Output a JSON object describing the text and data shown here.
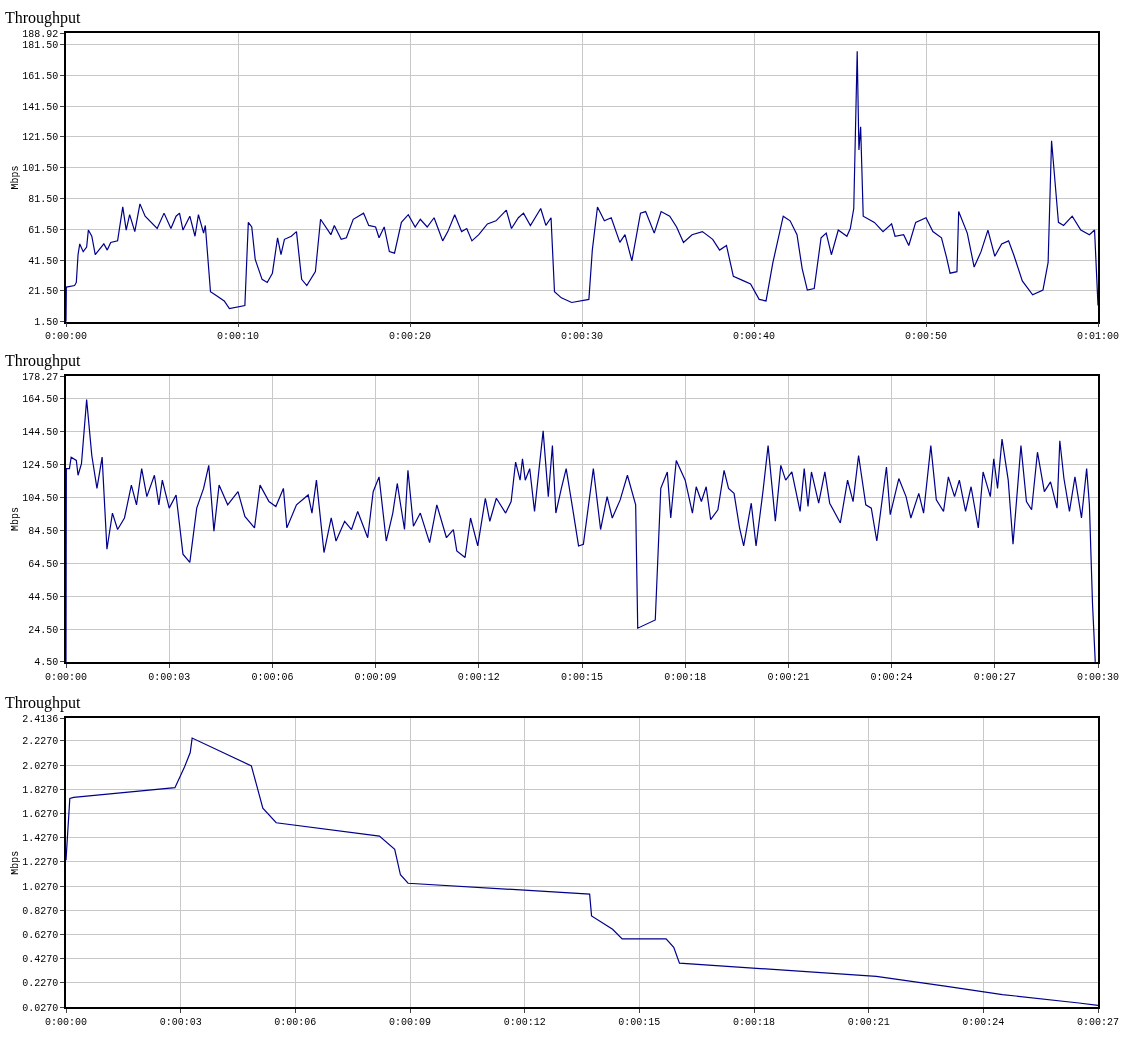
{
  "chart_data": [
    {
      "type": "line",
      "title": "Throughput",
      "ylabel": "Mbps",
      "color": "#00008b",
      "grid": true,
      "marker": "none",
      "line_style": "solid",
      "x": [
        0,
        0.02,
        0.5,
        0.6,
        0.7,
        0.8,
        1.0,
        1.2,
        1.3,
        1.5,
        1.7,
        2.2,
        2.4,
        2.6,
        3.0,
        3.3,
        3.5,
        3.7,
        4.0,
        4.3,
        4.6,
        5.3,
        5.7,
        6.1,
        6.4,
        6.6,
        6.8,
        7.2,
        7.5,
        7.7,
        8.0,
        8.1,
        8.4,
        8.8,
        9.2,
        9.5,
        10.4,
        10.6,
        10.8,
        11.0,
        11.4,
        11.7,
        12.0,
        12.3,
        12.5,
        12.7,
        13.1,
        13.4,
        13.7,
        14.0,
        14.5,
        14.8,
        15.4,
        15.6,
        16.0,
        16.3,
        16.7,
        17.3,
        17.6,
        18.0,
        18.2,
        18.5,
        18.8,
        19.1,
        19.5,
        19.9,
        20.3,
        20.6,
        21.0,
        21.4,
        21.6,
        21.9,
        22.2,
        22.6,
        23.0,
        23.3,
        23.6,
        24.0,
        24.5,
        25.0,
        25.6,
        25.9,
        26.3,
        26.6,
        27.0,
        27.6,
        27.9,
        28.2,
        28.4,
        28.8,
        29.4,
        30.4,
        30.6,
        30.9,
        31.3,
        31.7,
        32.2,
        32.5,
        32.9,
        33.4,
        33.7,
        34.2,
        34.6,
        35.1,
        35.5,
        35.9,
        36.4,
        37.0,
        37.6,
        38.0,
        38.4,
        38.8,
        39.4,
        39.8,
        40.3,
        40.7,
        41.1,
        41.7,
        42.1,
        42.5,
        42.8,
        43.1,
        43.5,
        43.9,
        44.2,
        44.5,
        44.9,
        45.4,
        45.6,
        45.8,
        46.0,
        46.1,
        46.2,
        46.35,
        47.0,
        47.5,
        48.0,
        48.2,
        48.7,
        49.0,
        49.4,
        50.0,
        50.4,
        50.9,
        51.2,
        51.4,
        51.8,
        51.9,
        52.4,
        52.8,
        53.2,
        53.6,
        54.0,
        54.4,
        54.8,
        55.1,
        55.6,
        56.2,
        56.8,
        57.1,
        57.3,
        57.7,
        58.0,
        58.5,
        59.0,
        59.5,
        59.8,
        60
      ],
      "values": [
        1.5,
        24,
        25,
        27,
        45,
        52,
        47,
        50,
        61,
        57,
        45,
        52,
        48,
        53,
        54,
        76,
        61,
        71,
        60,
        78,
        70,
        62,
        72,
        62,
        70,
        72,
        61,
        70,
        57,
        71,
        59,
        64,
        21,
        18,
        15,
        10,
        12,
        66,
        63,
        42,
        29,
        27,
        33,
        56,
        45,
        55,
        57,
        60,
        29,
        25,
        34,
        68,
        58,
        64,
        55,
        56,
        68,
        72,
        64,
        63,
        56,
        63,
        47,
        46,
        66,
        71,
        63,
        68,
        63,
        69,
        63,
        54,
        60,
        71,
        60,
        62,
        54,
        58,
        65,
        67,
        74,
        62,
        69,
        72,
        64,
        75,
        64,
        69,
        21,
        17,
        14,
        16,
        48,
        76,
        67,
        69,
        53,
        58,
        41,
        72,
        73,
        59,
        73,
        70,
        63,
        53,
        58,
        60,
        55,
        48,
        51,
        31,
        28,
        26,
        16,
        15,
        40,
        70,
        67,
        58,
        36,
        22,
        23,
        56,
        59,
        45,
        61,
        57,
        62,
        75,
        177,
        113,
        128,
        70,
        66,
        60,
        65,
        57,
        58,
        51,
        66,
        69,
        60,
        56,
        43,
        33,
        34,
        73,
        59,
        37,
        47,
        61,
        44,
        52,
        54,
        45,
        28,
        19,
        22,
        40,
        119,
        66,
        64,
        70,
        61,
        58,
        61,
        12
      ],
      "xlim": [
        0,
        60
      ],
      "xticks": [
        {
          "value": 0,
          "label": "0:00:00"
        },
        {
          "value": 10,
          "label": "0:00:10"
        },
        {
          "value": 20,
          "label": "0:00:20"
        },
        {
          "value": 30,
          "label": "0:00:30"
        },
        {
          "value": 40,
          "label": "0:00:40"
        },
        {
          "value": 50,
          "label": "0:00:50"
        },
        {
          "value": 60,
          "label": "0:01:00"
        }
      ],
      "ylim": [
        1.5,
        188.92
      ],
      "yticks": [
        {
          "value": 1.5,
          "label": "1.50"
        },
        {
          "value": 21.5,
          "label": "21.50"
        },
        {
          "value": 41.5,
          "label": "41.50"
        },
        {
          "value": 61.5,
          "label": "61.50"
        },
        {
          "value": 81.5,
          "label": "81.50"
        },
        {
          "value": 101.5,
          "label": "101.50"
        },
        {
          "value": 121.5,
          "label": "121.50"
        },
        {
          "value": 141.5,
          "label": "141.50"
        },
        {
          "value": 161.5,
          "label": "161.50"
        },
        {
          "value": 181.5,
          "label": "181.50"
        },
        {
          "value": 188.92,
          "label": "188.92"
        }
      ]
    },
    {
      "type": "line",
      "title": "Throughput",
      "ylabel": "Mbps",
      "color": "#00008b",
      "grid": true,
      "marker": "none",
      "line_style": "solid",
      "x": [
        0,
        0.01,
        0.1,
        0.15,
        0.3,
        0.35,
        0.45,
        0.6,
        0.75,
        0.9,
        1.05,
        1.19,
        1.35,
        1.5,
        1.7,
        1.9,
        2.05,
        2.2,
        2.35,
        2.57,
        2.7,
        2.8,
        3.0,
        3.2,
        3.4,
        3.6,
        3.8,
        4.0,
        4.15,
        4.3,
        4.45,
        4.7,
        5.0,
        5.2,
        5.48,
        5.64,
        5.9,
        6.1,
        6.32,
        6.42,
        6.7,
        7.04,
        7.15,
        7.28,
        7.5,
        7.71,
        7.85,
        8.1,
        8.3,
        8.48,
        8.77,
        8.93,
        9.1,
        9.31,
        9.5,
        9.63,
        9.84,
        9.94,
        10.1,
        10.3,
        10.57,
        10.78,
        11.06,
        11.26,
        11.36,
        11.6,
        11.76,
        11.97,
        12.19,
        12.32,
        12.51,
        12.78,
        12.94,
        13.07,
        13.2,
        13.27,
        13.35,
        13.48,
        13.62,
        13.87,
        14.02,
        14.14,
        14.24,
        14.4,
        14.54,
        14.75,
        14.9,
        15.04,
        15.33,
        15.54,
        15.73,
        15.88,
        16.11,
        16.32,
        16.56,
        16.62,
        17.13,
        17.29,
        17.48,
        17.58,
        17.74,
        18.0,
        18.21,
        18.32,
        18.47,
        18.61,
        18.74,
        18.95,
        19.13,
        19.26,
        19.42,
        19.58,
        19.7,
        19.92,
        20.06,
        20.26,
        20.41,
        20.62,
        20.78,
        20.92,
        21.1,
        21.34,
        21.46,
        21.57,
        21.67,
        21.88,
        22.06,
        22.2,
        22.51,
        22.72,
        22.88,
        23.04,
        23.25,
        23.41,
        23.57,
        23.85,
        23.96,
        24.21,
        24.42,
        24.56,
        24.79,
        24.93,
        25.14,
        25.3,
        25.51,
        25.65,
        25.83,
        25.97,
        26.15,
        26.31,
        26.52,
        26.66,
        26.87,
        26.97,
        27.08,
        27.21,
        27.39,
        27.53,
        27.76,
        27.92,
        28.07,
        28.24,
        28.44,
        28.62,
        28.81,
        28.89,
        29.01,
        29.17,
        29.33,
        29.52,
        29.67,
        29.75,
        29.84,
        29.92
      ],
      "values": [
        4.5,
        122,
        122,
        129,
        127,
        118,
        125,
        164,
        130,
        110,
        129,
        73,
        95,
        85,
        92,
        112,
        100,
        122,
        105,
        118,
        100,
        115,
        98,
        106,
        70,
        65,
        98,
        110,
        124,
        84,
        112,
        100,
        108,
        93,
        86,
        112,
        102,
        99,
        110,
        86,
        100,
        106,
        95,
        115,
        71,
        92,
        78,
        90,
        85,
        96,
        80,
        108,
        117,
        78,
        95,
        113,
        85,
        121,
        87,
        95,
        77,
        100,
        80,
        85,
        72,
        68,
        92,
        75,
        104,
        90,
        104,
        95,
        102,
        126,
        115,
        128,
        115,
        122,
        96,
        145,
        105,
        136,
        95,
        110,
        122,
        95,
        75,
        76,
        122,
        85,
        105,
        92,
        103,
        118,
        100,
        25,
        30,
        110,
        120,
        92,
        127,
        115,
        95,
        111,
        102,
        111,
        91,
        97,
        121,
        110,
        107,
        86,
        75,
        101,
        75,
        108,
        136,
        90,
        124,
        115,
        120,
        96,
        122,
        99,
        120,
        101,
        120,
        101,
        89,
        115,
        102,
        130,
        100,
        98,
        78,
        123,
        94,
        116,
        105,
        92,
        107,
        95,
        136,
        103,
        96,
        117,
        105,
        115,
        96,
        111,
        86,
        120,
        105,
        128,
        110,
        140,
        115,
        76,
        136,
        102,
        97,
        132,
        108,
        114,
        98,
        139,
        116,
        96,
        117,
        92,
        122,
        100,
        40,
        4.5
      ],
      "xlim": [
        0,
        30
      ],
      "xticks": [
        {
          "value": 0,
          "label": "0:00:00"
        },
        {
          "value": 3,
          "label": "0:00:03"
        },
        {
          "value": 6,
          "label": "0:00:06"
        },
        {
          "value": 9,
          "label": "0:00:09"
        },
        {
          "value": 12,
          "label": "0:00:12"
        },
        {
          "value": 15,
          "label": "0:00:15"
        },
        {
          "value": 18,
          "label": "0:00:18"
        },
        {
          "value": 21,
          "label": "0:00:21"
        },
        {
          "value": 24,
          "label": "0:00:24"
        },
        {
          "value": 27,
          "label": "0:00:27"
        },
        {
          "value": 30,
          "label": "0:00:30"
        }
      ],
      "ylim": [
        4.5,
        178.27
      ],
      "yticks": [
        {
          "value": 4.5,
          "label": "4.50"
        },
        {
          "value": 24.5,
          "label": "24.50"
        },
        {
          "value": 44.5,
          "label": "44.50"
        },
        {
          "value": 64.5,
          "label": "64.50"
        },
        {
          "value": 84.5,
          "label": "84.50"
        },
        {
          "value": 104.5,
          "label": "104.50"
        },
        {
          "value": 124.5,
          "label": "124.50"
        },
        {
          "value": 144.5,
          "label": "144.50"
        },
        {
          "value": 164.5,
          "label": "164.50"
        },
        {
          "value": 178.27,
          "label": "178.27"
        }
      ]
    },
    {
      "type": "line",
      "title": "Throughput",
      "ylabel": "Mbps",
      "color": "#00008b",
      "grid": true,
      "marker": "none",
      "line_style": "solid",
      "x": [
        0,
        0.1,
        0.2,
        2.85,
        3.1,
        3.25,
        3.3,
        4.85,
        5.15,
        5.5,
        8.2,
        8.6,
        8.75,
        8.95,
        13.7,
        13.75,
        14.3,
        14.55,
        15.7,
        15.9,
        16.05,
        21.2,
        23,
        24.5,
        26.5,
        27
      ],
      "values": [
        1.24,
        1.75,
        1.76,
        1.84,
        2.01,
        2.13,
        2.25,
        2.02,
        1.67,
        1.55,
        1.44,
        1.33,
        1.12,
        1.05,
        0.96,
        0.78,
        0.67,
        0.59,
        0.59,
        0.52,
        0.39,
        0.28,
        0.2,
        0.13,
        0.06,
        0.04
      ],
      "xlim": [
        0,
        27
      ],
      "xticks": [
        {
          "value": 0,
          "label": "0:00:00"
        },
        {
          "value": 3,
          "label": "0:00:03"
        },
        {
          "value": 6,
          "label": "0:00:06"
        },
        {
          "value": 9,
          "label": "0:00:09"
        },
        {
          "value": 12,
          "label": "0:00:12"
        },
        {
          "value": 15,
          "label": "0:00:15"
        },
        {
          "value": 18,
          "label": "0:00:18"
        },
        {
          "value": 21,
          "label": "0:00:21"
        },
        {
          "value": 24,
          "label": "0:00:24"
        },
        {
          "value": 27,
          "label": "0:00:27"
        }
      ],
      "ylim": [
        0.027,
        2.4136
      ],
      "yticks": [
        {
          "value": 0.027,
          "label": "0.0270"
        },
        {
          "value": 0.227,
          "label": "0.2270"
        },
        {
          "value": 0.427,
          "label": "0.4270"
        },
        {
          "value": 0.627,
          "label": "0.6270"
        },
        {
          "value": 0.827,
          "label": "0.8270"
        },
        {
          "value": 1.027,
          "label": "1.0270"
        },
        {
          "value": 1.227,
          "label": "1.2270"
        },
        {
          "value": 1.427,
          "label": "1.4270"
        },
        {
          "value": 1.627,
          "label": "1.6270"
        },
        {
          "value": 1.827,
          "label": "1.8270"
        },
        {
          "value": 2.027,
          "label": "2.0270"
        },
        {
          "value": 2.227,
          "label": "2.2270"
        },
        {
          "value": 2.4136,
          "label": "2.4136"
        }
      ]
    }
  ]
}
